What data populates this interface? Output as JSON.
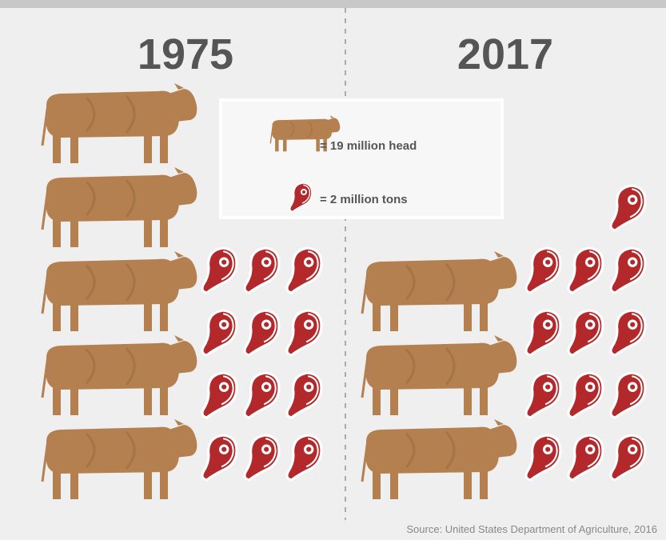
{
  "chart_data": {
    "type": "pictograph",
    "categories": [
      "1975",
      "2017"
    ],
    "series": [
      {
        "name": "= 19 million head",
        "icon": "cow",
        "color": "#b5804f",
        "values": [
          5,
          3
        ]
      },
      {
        "name": "= 2 million tons",
        "icon": "steak",
        "color": "#b3292b",
        "values": [
          12,
          13
        ]
      }
    ],
    "source": "Source: United States Department of Agriculture, 2016"
  }
}
